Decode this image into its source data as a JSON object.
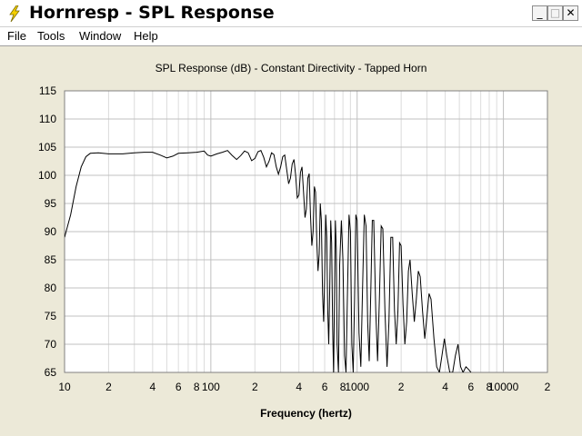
{
  "window": {
    "title": "Hornresp - SPL Response",
    "minimize_glyph": "_",
    "maximize_glyph": "□",
    "close_glyph": "✕",
    "icon": "lightning-bolt-icon"
  },
  "menu": {
    "items": [
      "File",
      "Tools",
      "Window",
      "Help"
    ]
  },
  "colors": {
    "plot_background": "#ffffff",
    "window_background": "#ece9d8",
    "grid_major": "#c0c0c0",
    "grid_minor": "#dcdcdc",
    "curve": "#000000"
  },
  "chart_data": {
    "type": "line",
    "title": "SPL Response (dB) - Constant Directivity - Tapped Horn",
    "xlabel": "Frequency (hertz)",
    "ylabel": "",
    "x_scale": "log",
    "xlim": [
      10,
      20000
    ],
    "ylim": [
      65,
      115
    ],
    "y_ticks": [
      65,
      70,
      75,
      80,
      85,
      90,
      95,
      100,
      105,
      110,
      115
    ],
    "x_tick_labels": [
      {
        "value": 10,
        "label": "10"
      },
      {
        "value": 20,
        "label": "2"
      },
      {
        "value": 40,
        "label": "4"
      },
      {
        "value": 60,
        "label": "6"
      },
      {
        "value": 80,
        "label": "8"
      },
      {
        "value": 100,
        "label": "100"
      },
      {
        "value": 200,
        "label": "2"
      },
      {
        "value": 400,
        "label": "4"
      },
      {
        "value": 600,
        "label": "6"
      },
      {
        "value": 800,
        "label": "8"
      },
      {
        "value": 1000,
        "label": "1000"
      },
      {
        "value": 2000,
        "label": "2"
      },
      {
        "value": 4000,
        "label": "4"
      },
      {
        "value": 6000,
        "label": "6"
      },
      {
        "value": 8000,
        "label": "8"
      },
      {
        "value": 10000,
        "label": "10000"
      },
      {
        "value": 20000,
        "label": "2"
      }
    ],
    "grid": true,
    "series": [
      {
        "values": [
          [
            10,
            89
          ],
          [
            11,
            93
          ],
          [
            12,
            98
          ],
          [
            13,
            101.5
          ],
          [
            14,
            103.3
          ],
          [
            15,
            103.9
          ],
          [
            17,
            104
          ],
          [
            20,
            103.8
          ],
          [
            25,
            103.8
          ],
          [
            30,
            104
          ],
          [
            35,
            104.1
          ],
          [
            40,
            104.1
          ],
          [
            45,
            103.6
          ],
          [
            50,
            103.1
          ],
          [
            55,
            103.4
          ],
          [
            60,
            103.9
          ],
          [
            70,
            104
          ],
          [
            80,
            104.1
          ],
          [
            90,
            104.3
          ],
          [
            95,
            103.6
          ],
          [
            100,
            103.4
          ],
          [
            110,
            103.8
          ],
          [
            120,
            104.1
          ],
          [
            130,
            104.4
          ],
          [
            140,
            103.5
          ],
          [
            150,
            102.8
          ],
          [
            160,
            103.5
          ],
          [
            170,
            104.3
          ],
          [
            180,
            104.0
          ],
          [
            190,
            102.6
          ],
          [
            200,
            103
          ],
          [
            210,
            104.2
          ],
          [
            220,
            104.4
          ],
          [
            230,
            103.2
          ],
          [
            240,
            101.5
          ],
          [
            250,
            102.5
          ],
          [
            260,
            104
          ],
          [
            270,
            103.7
          ],
          [
            280,
            101.5
          ],
          [
            290,
            100.2
          ],
          [
            300,
            101.5
          ],
          [
            310,
            103.3
          ],
          [
            320,
            103.6
          ],
          [
            330,
            101
          ],
          [
            340,
            98.5
          ],
          [
            350,
            99.5
          ],
          [
            360,
            102
          ],
          [
            370,
            102.8
          ],
          [
            380,
            100
          ],
          [
            390,
            96
          ],
          [
            400,
            96.5
          ],
          [
            410,
            100.5
          ],
          [
            420,
            101.5
          ],
          [
            430,
            97
          ],
          [
            440,
            92.5
          ],
          [
            450,
            94
          ],
          [
            460,
            99.5
          ],
          [
            470,
            100.3
          ],
          [
            480,
            93
          ],
          [
            490,
            87.5
          ],
          [
            500,
            90
          ],
          [
            510,
            98
          ],
          [
            520,
            97
          ],
          [
            530,
            88
          ],
          [
            540,
            83
          ],
          [
            550,
            86
          ],
          [
            560,
            95
          ],
          [
            570,
            92
          ],
          [
            580,
            79
          ],
          [
            590,
            74
          ],
          [
            600,
            82
          ],
          [
            610,
            93
          ],
          [
            620,
            89
          ],
          [
            630,
            76
          ],
          [
            640,
            70
          ],
          [
            650,
            80
          ],
          [
            660,
            92
          ],
          [
            670,
            88
          ],
          [
            680,
            73
          ],
          [
            690,
            65
          ],
          [
            700,
            78
          ],
          [
            710,
            92
          ],
          [
            720,
            87
          ],
          [
            730,
            70
          ],
          [
            745,
            65
          ],
          [
            760,
            84
          ],
          [
            780,
            92
          ],
          [
            800,
            85
          ],
          [
            820,
            68
          ],
          [
            840,
            65
          ],
          [
            860,
            80
          ],
          [
            880,
            93
          ],
          [
            900,
            90
          ],
          [
            920,
            70
          ],
          [
            940,
            65
          ],
          [
            960,
            78
          ],
          [
            980,
            93
          ],
          [
            1000,
            92
          ],
          [
            1030,
            72
          ],
          [
            1060,
            66
          ],
          [
            1090,
            80
          ],
          [
            1120,
            93
          ],
          [
            1150,
            91
          ],
          [
            1180,
            74
          ],
          [
            1210,
            67
          ],
          [
            1240,
            79
          ],
          [
            1270,
            92
          ],
          [
            1300,
            92
          ],
          [
            1340,
            76
          ],
          [
            1380,
            67
          ],
          [
            1420,
            78
          ],
          [
            1460,
            91
          ],
          [
            1500,
            90.5
          ],
          [
            1550,
            76
          ],
          [
            1600,
            66
          ],
          [
            1650,
            74
          ],
          [
            1700,
            89
          ],
          [
            1750,
            89
          ],
          [
            1800,
            76
          ],
          [
            1850,
            70
          ],
          [
            1900,
            76
          ],
          [
            1950,
            88
          ],
          [
            2000,
            87.5
          ],
          [
            2060,
            77
          ],
          [
            2120,
            70
          ],
          [
            2180,
            74
          ],
          [
            2240,
            83
          ],
          [
            2300,
            85
          ],
          [
            2380,
            79
          ],
          [
            2460,
            74
          ],
          [
            2540,
            78
          ],
          [
            2620,
            83
          ],
          [
            2700,
            82
          ],
          [
            2800,
            76
          ],
          [
            2900,
            71
          ],
          [
            3000,
            75
          ],
          [
            3100,
            79
          ],
          [
            3200,
            78
          ],
          [
            3350,
            71
          ],
          [
            3500,
            66
          ],
          [
            3650,
            65
          ],
          [
            3800,
            68
          ],
          [
            3950,
            71
          ],
          [
            4100,
            68
          ],
          [
            4300,
            65
          ],
          [
            4500,
            65
          ],
          [
            4700,
            68
          ],
          [
            4900,
            70
          ],
          [
            5100,
            66
          ],
          [
            5300,
            65
          ],
          [
            5550,
            66
          ],
          [
            5800,
            65.5
          ],
          [
            6000,
            65
          ]
        ]
      }
    ]
  }
}
